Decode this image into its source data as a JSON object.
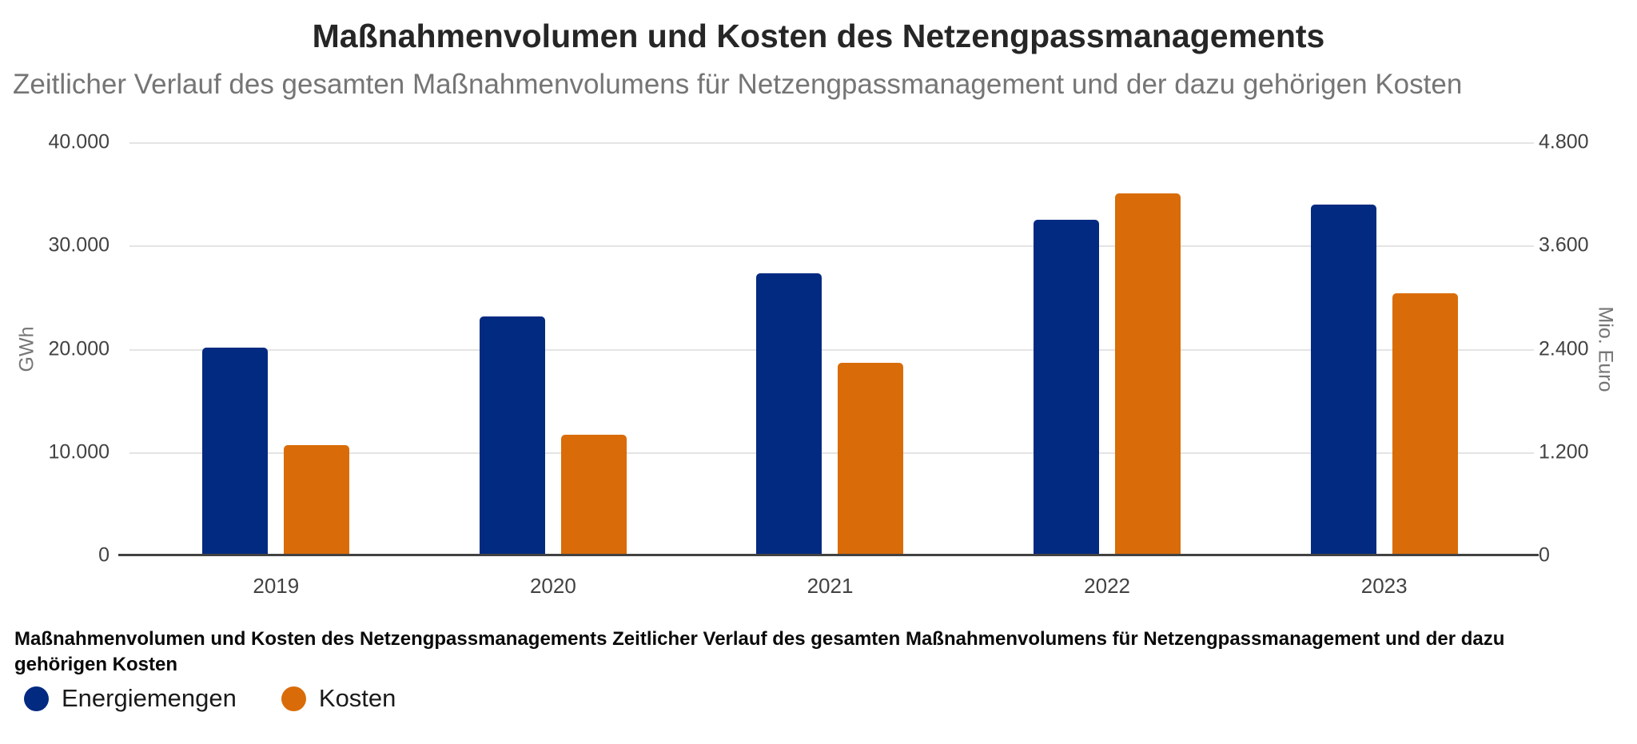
{
  "header": {
    "title": "Maßnahmenvolumen und Kosten des Netzengpassmanagements",
    "subtitle": "Zeitlicher Verlauf des gesamten Maßnahmenvolumens für Netzengpassmanagement und der dazu gehörigen Kosten"
  },
  "chart_data": {
    "type": "bar",
    "categories": [
      "2019",
      "2020",
      "2021",
      "2022",
      "2023"
    ],
    "series": [
      {
        "name": "Energiemengen",
        "axis": "left",
        "unit": "GWh",
        "color": "#032a81",
        "values": [
          20100,
          23100,
          27350,
          32500,
          34000
        ]
      },
      {
        "name": "Kosten",
        "axis": "right",
        "unit": "Mio. Euro",
        "color": "#d96c08",
        "values": [
          1280,
          1400,
          2240,
          4210,
          3050
        ]
      }
    ],
    "left_axis": {
      "label": "GWh",
      "min": 0,
      "max": 40000,
      "ticks": [
        "0",
        "10.000",
        "20.000",
        "30.000",
        "40.000"
      ]
    },
    "right_axis": {
      "label": "Mio. Euro",
      "min": 0,
      "max": 4800,
      "ticks": [
        "0",
        "1.200",
        "2.400",
        "3.600",
        "4.800"
      ]
    },
    "grid": true,
    "legend_position": "bottom-left"
  },
  "caption": "Maßnahmenvolumen und Kosten des Netzengpassmanagements Zeitlicher Verlauf des gesamten Maßnahmenvolumens für Netzengpassmanagement und der dazu gehörigen Kosten",
  "legend": [
    {
      "label": "Energiemengen",
      "color": "#032a81"
    },
    {
      "label": "Kosten",
      "color": "#d96c08"
    }
  ]
}
